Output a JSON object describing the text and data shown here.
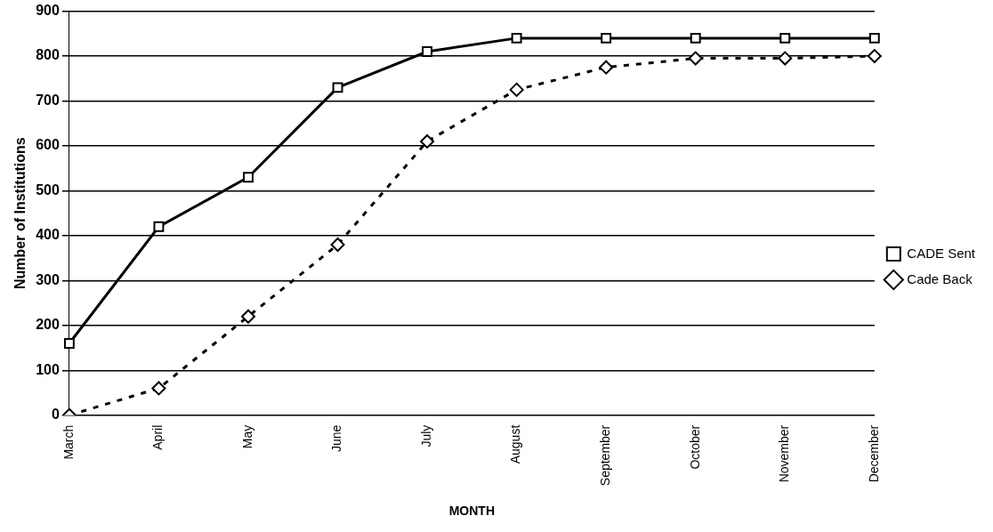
{
  "chart_data": {
    "type": "line",
    "xlabel": "MONTH",
    "ylabel": "Number of Institutions",
    "categories": [
      "March",
      "April",
      "May",
      "June",
      "July",
      "August",
      "September",
      "October",
      "November",
      "December"
    ],
    "series": [
      {
        "name": "CADE Sent",
        "color": "#000000",
        "values": [
          160,
          420,
          530,
          730,
          810,
          840,
          840,
          840,
          840,
          840
        ],
        "marker": "square",
        "line_style": "solid"
      },
      {
        "name": "Cade Back",
        "color": "#000000",
        "values": [
          0,
          60,
          220,
          380,
          610,
          725,
          775,
          795,
          795,
          800
        ],
        "marker": "diamond",
        "line_style": "dotted"
      }
    ],
    "ylim": [
      0,
      900
    ],
    "yticks": [
      0,
      100,
      200,
      300,
      400,
      500,
      600,
      700,
      800,
      900
    ],
    "grid": "y",
    "legend": "right"
  }
}
